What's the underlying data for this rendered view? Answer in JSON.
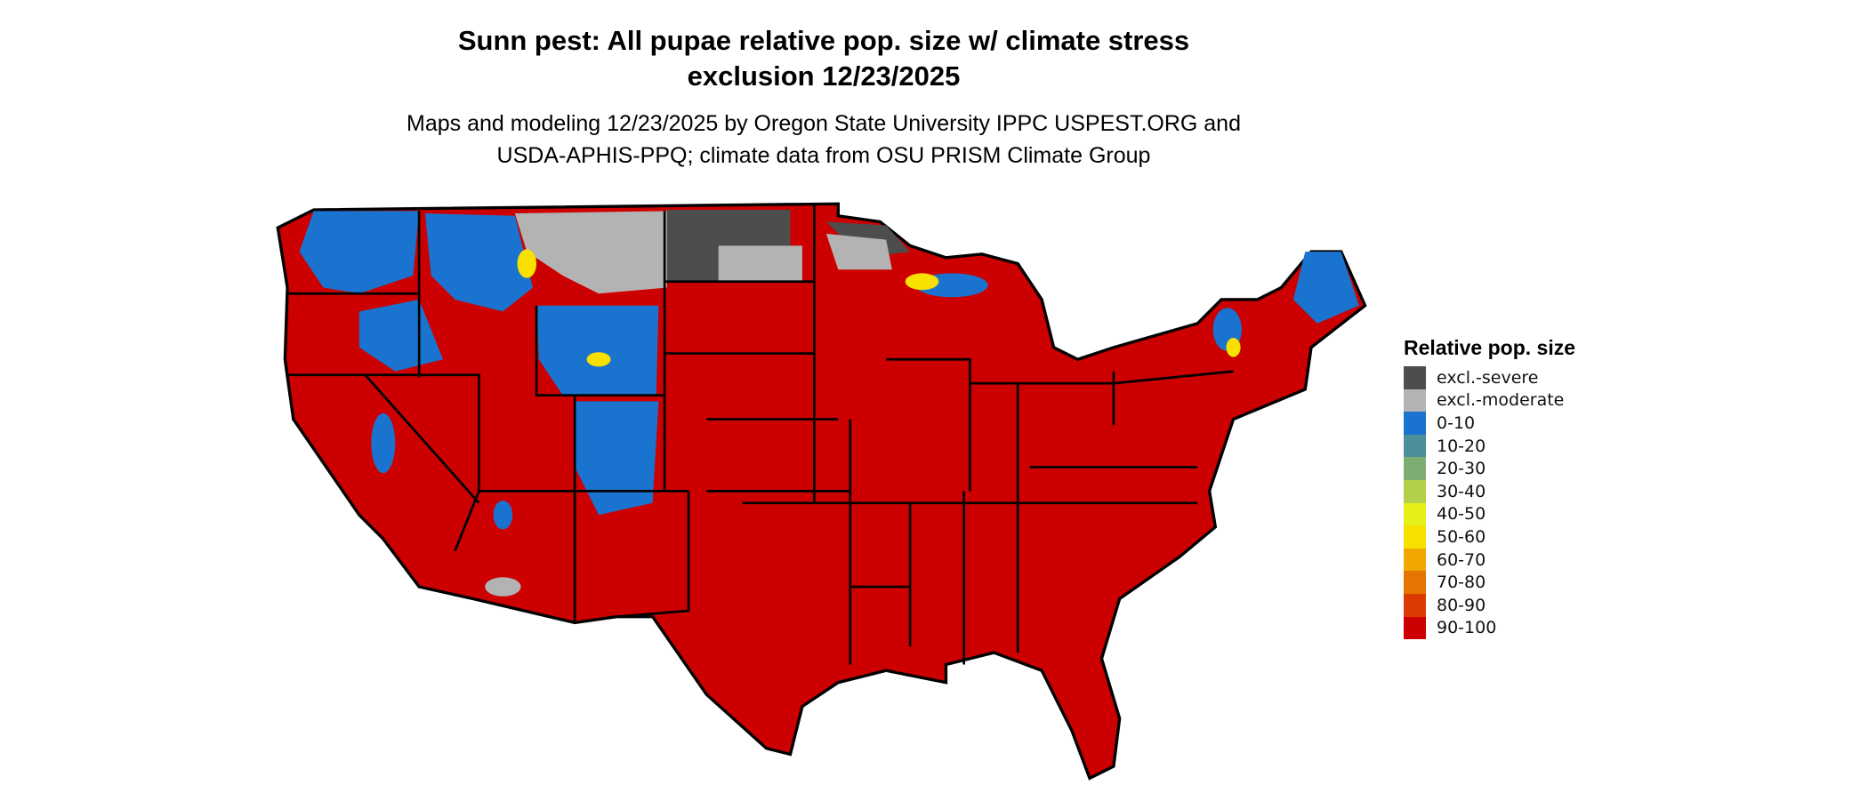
{
  "title": {
    "line1": "Sunn pest: All pupae relative pop. size w/ climate stress",
    "line2": "exclusion 12/23/2025"
  },
  "subtitle": {
    "line1": "Maps and modeling 12/23/2025 by Oregon State University IPPC USPEST.ORG and",
    "line2": "USDA-APHIS-PPQ; climate data from OSU PRISM Climate Group"
  },
  "legend": {
    "title": "Relative pop. size",
    "items": [
      {
        "label": "excl.-severe",
        "color": "#4d4d4d"
      },
      {
        "label": "excl.-moderate",
        "color": "#b3b3b3"
      },
      {
        "label": "0-10",
        "color": "#1a73cf"
      },
      {
        "label": "10-20",
        "color": "#4a8f9a"
      },
      {
        "label": "20-30",
        "color": "#7ead72"
      },
      {
        "label": "30-40",
        "color": "#b2d04a"
      },
      {
        "label": "40-50",
        "color": "#e5ef18"
      },
      {
        "label": "50-60",
        "color": "#f8e000"
      },
      {
        "label": "60-70",
        "color": "#f0a800"
      },
      {
        "label": "70-80",
        "color": "#e57400"
      },
      {
        "label": "80-90",
        "color": "#db3a00"
      },
      {
        "label": "90-100",
        "color": "#cc0000"
      }
    ]
  }
}
